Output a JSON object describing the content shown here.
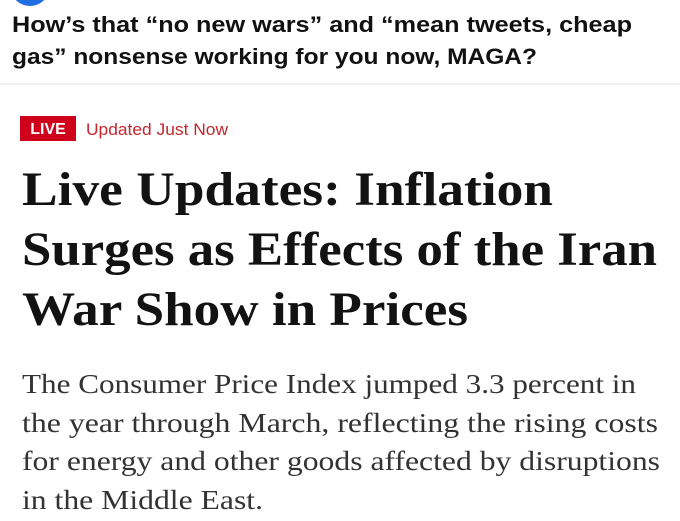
{
  "post": {
    "text_lines": [
      "How’s that “no new wars” and “mean tweets, cheap",
      "gas” nonsense working for you now, MAGA?"
    ]
  },
  "article": {
    "badge": "LIVE",
    "status": "Updated Just Now",
    "headline_lines": [
      "Live Updates: Inflation",
      "Surges as Effects of the Iran",
      "War Show in Prices"
    ],
    "summary_lines": [
      "The Consumer Price Index jumped 3.3 percent in",
      "the year through March, reflecting the rising costs",
      "for energy and other goods affected by disruptions",
      "in the Middle East."
    ]
  }
}
